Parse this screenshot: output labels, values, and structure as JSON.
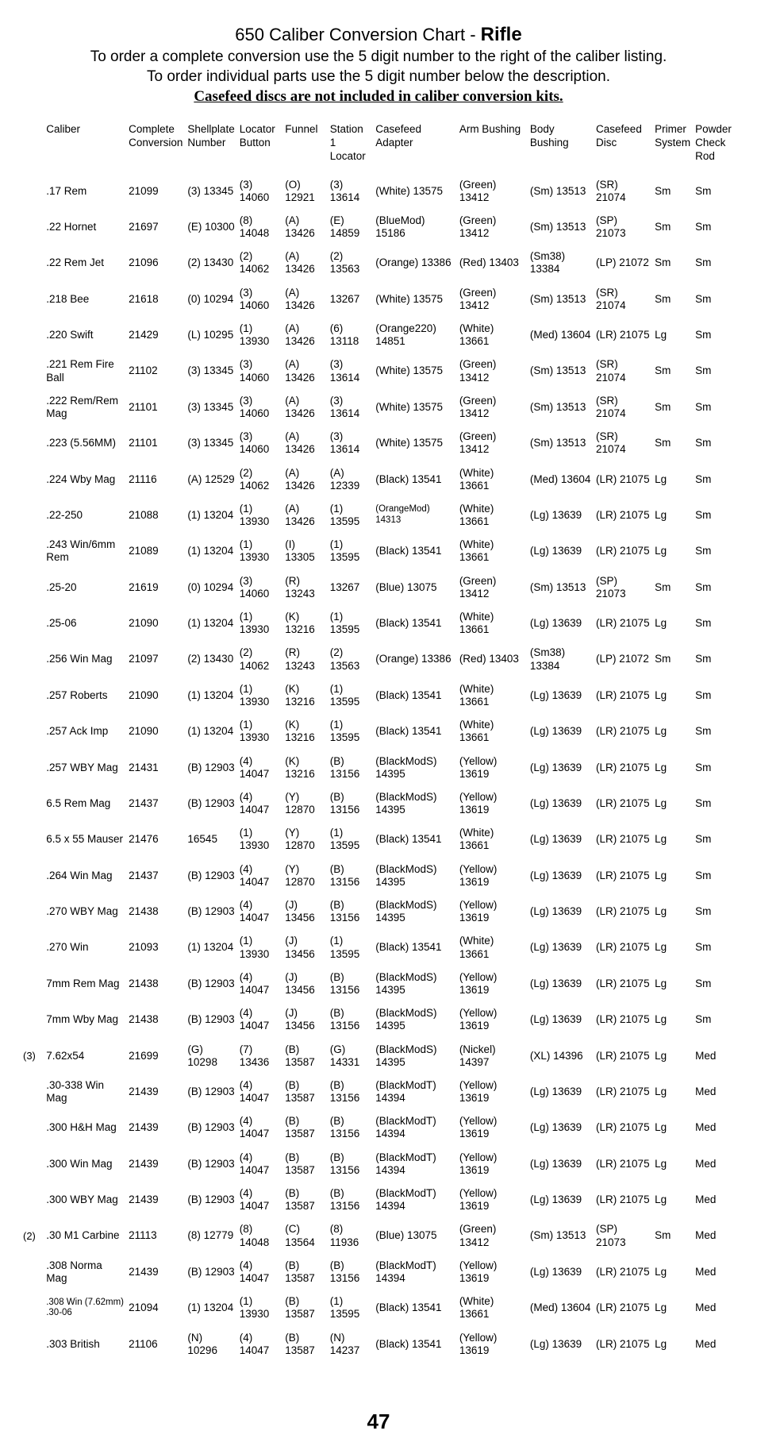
{
  "title": {
    "line1_pre": "650 Caliber Conversion Chart - ",
    "line1_bold": "Rifle",
    "line2": "To order a complete conversion use the 5 digit number to the right of the caliber listing.",
    "line3": "To order individual parts use the 5 digit number below the description.",
    "line4": "Casefeed discs are not included in caliber conversion kits."
  },
  "headers": {
    "caliber": "Caliber",
    "complete": "Complete Conversion",
    "shellplate": "Shellplate Number",
    "locator": "Locator Button",
    "funnel": "Funnel",
    "station1": "Station 1 Locator",
    "adapter": "Casefeed Adapter",
    "arm": "Arm Bushing",
    "body": "Body Bushing",
    "disc": "Casefeed Disc",
    "primer": "Primer System",
    "powder": "Powder Check Rod"
  },
  "rows": [
    {
      "note": "",
      "caliber": ".17 Rem",
      "complete": "21099",
      "shellplate": "(3) 13345",
      "locator": "(3) 14060",
      "funnel": "(O) 12921",
      "station1": "(3) 13614",
      "adapter": "(White) 13575",
      "arm": "(Green) 13412",
      "body": "(Sm) 13513",
      "disc": "(SR) 21074",
      "primer": "Sm",
      "powder": "Sm"
    },
    {
      "note": "",
      "caliber": ".22 Hornet",
      "complete": "21697",
      "shellplate": "(E) 10300",
      "locator": "(8) 14048",
      "funnel": "(A) 13426",
      "station1": "(E) 14859",
      "adapter": "(BlueMod) 15186",
      "arm": "(Green) 13412",
      "body": "(Sm) 13513",
      "disc": "(SP) 21073",
      "primer": "Sm",
      "powder": "Sm"
    },
    {
      "note": "",
      "caliber": ".22 Rem Jet",
      "complete": "21096",
      "shellplate": "(2) 13430",
      "locator": "(2) 14062",
      "funnel": "(A) 13426",
      "station1": "(2) 13563",
      "adapter": "(Orange) 13386",
      "arm": "(Red) 13403",
      "body": "(Sm38) 13384",
      "disc": "(LP) 21072",
      "primer": "Sm",
      "powder": "Sm"
    },
    {
      "note": "",
      "caliber": ".218 Bee",
      "complete": "21618",
      "shellplate": "(0) 10294",
      "locator": "(3) 14060",
      "funnel": "(A) 13426",
      "station1": "13267",
      "adapter": "(White) 13575",
      "arm": "(Green) 13412",
      "body": "(Sm) 13513",
      "disc": "(SR) 21074",
      "primer": "Sm",
      "powder": "Sm"
    },
    {
      "note": "",
      "caliber": ".220 Swift",
      "complete": "21429",
      "shellplate": "(L) 10295",
      "locator": "(1) 13930",
      "funnel": "(A) 13426",
      "station1": "(6) 13118",
      "adapter": "(Orange220) 14851",
      "arm": "(White) 13661",
      "body": "(Med) 13604",
      "disc": "(LR) 21075",
      "primer": "Lg",
      "powder": "Sm"
    },
    {
      "note": "",
      "caliber": ".221 Rem Fire Ball",
      "complete": "21102",
      "shellplate": "(3) 13345",
      "locator": "(3) 14060",
      "funnel": "(A) 13426",
      "station1": "(3) 13614",
      "adapter": "(White) 13575",
      "arm": "(Green) 13412",
      "body": "(Sm) 13513",
      "disc": "(SR) 21074",
      "primer": "Sm",
      "powder": "Sm"
    },
    {
      "note": "",
      "caliber": ".222 Rem/Rem Mag",
      "complete": "21101",
      "shellplate": "(3) 13345",
      "locator": "(3) 14060",
      "funnel": "(A) 13426",
      "station1": "(3) 13614",
      "adapter": "(White) 13575",
      "arm": "(Green) 13412",
      "body": "(Sm) 13513",
      "disc": "(SR) 21074",
      "primer": "Sm",
      "powder": "Sm"
    },
    {
      "note": "",
      "caliber": ".223 (5.56MM)",
      "complete": "21101",
      "shellplate": "(3) 13345",
      "locator": "(3) 14060",
      "funnel": "(A) 13426",
      "station1": "(3) 13614",
      "adapter": "(White) 13575",
      "arm": "(Green) 13412",
      "body": "(Sm) 13513",
      "disc": "(SR) 21074",
      "primer": "Sm",
      "powder": "Sm"
    },
    {
      "note": "",
      "caliber": ".224 Wby Mag",
      "complete": "21116",
      "shellplate": "(A) 12529",
      "locator": "(2) 14062",
      "funnel": "(A) 13426",
      "station1": "(A) 12339",
      "adapter": "(Black) 13541",
      "arm": "(White) 13661",
      "body": "(Med) 13604",
      "disc": "(LR) 21075",
      "primer": "Lg",
      "powder": "Sm"
    },
    {
      "note": "",
      "caliber": ".22-250",
      "complete": "21088",
      "shellplate": "(1) 13204",
      "locator": "(1) 13930",
      "funnel": "(A) 13426",
      "station1": "(1) 13595",
      "adapter": "(OrangeMod) 14313",
      "adapter_small": true,
      "arm": "(White) 13661",
      "body": "(Lg) 13639",
      "disc": "(LR) 21075",
      "primer": "Lg",
      "powder": "Sm"
    },
    {
      "note": "",
      "caliber": ".243 Win/6mm Rem",
      "complete": "21089",
      "shellplate": "(1) 13204",
      "locator": "(1) 13930",
      "funnel": "(I) 13305",
      "station1": "(1) 13595",
      "adapter": "(Black) 13541",
      "arm": "(White) 13661",
      "body": "(Lg) 13639",
      "disc": "(LR) 21075",
      "primer": "Lg",
      "powder": "Sm"
    },
    {
      "note": "",
      "caliber": ".25-20",
      "complete": "21619",
      "shellplate": "(0) 10294",
      "locator": "(3) 14060",
      "funnel": "(R) 13243",
      "station1": "13267",
      "adapter": "(Blue) 13075",
      "arm": "(Green) 13412",
      "body": "(Sm) 13513",
      "disc": "(SP) 21073",
      "primer": "Sm",
      "powder": "Sm"
    },
    {
      "note": "",
      "caliber": ".25-06",
      "complete": "21090",
      "shellplate": "(1) 13204",
      "locator": "(1) 13930",
      "funnel": "(K) 13216",
      "station1": "(1) 13595",
      "adapter": "(Black) 13541",
      "arm": "(White) 13661",
      "body": "(Lg) 13639",
      "disc": "(LR) 21075",
      "primer": "Lg",
      "powder": "Sm"
    },
    {
      "note": "",
      "caliber": ".256 Win Mag",
      "complete": "21097",
      "shellplate": "(2) 13430",
      "locator": "(2) 14062",
      "funnel": "(R) 13243",
      "station1": "(2) 13563",
      "adapter": "(Orange) 13386",
      "arm": "(Red) 13403",
      "body": "(Sm38) 13384",
      "disc": "(LP) 21072",
      "primer": "Sm",
      "powder": "Sm"
    },
    {
      "note": "",
      "caliber": ".257 Roberts",
      "complete": "21090",
      "shellplate": "(1) 13204",
      "locator": "(1) 13930",
      "funnel": "(K) 13216",
      "station1": "(1) 13595",
      "adapter": "(Black) 13541",
      "arm": "(White) 13661",
      "body": "(Lg) 13639",
      "disc": "(LR) 21075",
      "primer": "Lg",
      "powder": "Sm"
    },
    {
      "note": "",
      "caliber": ".257 Ack Imp",
      "complete": "21090",
      "shellplate": "(1) 13204",
      "locator": "(1) 13930",
      "funnel": "(K) 13216",
      "station1": "(1) 13595",
      "adapter": "(Black) 13541",
      "arm": "(White) 13661",
      "body": "(Lg) 13639",
      "disc": "(LR) 21075",
      "primer": "Lg",
      "powder": "Sm"
    },
    {
      "note": "",
      "caliber": ".257 WBY Mag",
      "complete": "21431",
      "shellplate": "(B) 12903",
      "locator": "(4) 14047",
      "funnel": "(K) 13216",
      "station1": "(B) 13156",
      "adapter": "(BlackModS) 14395",
      "arm": "(Yellow) 13619",
      "body": "(Lg) 13639",
      "disc": "(LR) 21075",
      "primer": "Lg",
      "powder": "Sm"
    },
    {
      "note": "",
      "caliber": "6.5 Rem Mag",
      "complete": "21437",
      "shellplate": "(B) 12903",
      "locator": "(4) 14047",
      "funnel": "(Y) 12870",
      "station1": "(B) 13156",
      "adapter": "(BlackModS) 14395",
      "arm": "(Yellow) 13619",
      "body": "(Lg) 13639",
      "disc": "(LR) 21075",
      "primer": "Lg",
      "powder": "Sm"
    },
    {
      "note": "",
      "caliber": "6.5 x 55 Mauser",
      "complete": "21476",
      "shellplate": "16545",
      "locator": "(1) 13930",
      "funnel": "(Y) 12870",
      "station1": "(1) 13595",
      "adapter": "(Black) 13541",
      "arm": "(White) 13661",
      "body": "(Lg) 13639",
      "disc": "(LR) 21075",
      "primer": "Lg",
      "powder": "Sm"
    },
    {
      "note": "",
      "caliber": ".264 Win Mag",
      "complete": "21437",
      "shellplate": "(B) 12903",
      "locator": "(4) 14047",
      "funnel": "(Y) 12870",
      "station1": "(B) 13156",
      "adapter": "(BlackModS) 14395",
      "arm": "(Yellow) 13619",
      "body": "(Lg) 13639",
      "disc": "(LR) 21075",
      "primer": "Lg",
      "powder": "Sm"
    },
    {
      "note": "",
      "caliber": ".270 WBY Mag",
      "complete": "21438",
      "shellplate": "(B) 12903",
      "locator": "(4) 14047",
      "funnel": "(J) 13456",
      "station1": "(B) 13156",
      "adapter": "(BlackModS) 14395",
      "arm": "(Yellow) 13619",
      "body": "(Lg) 13639",
      "disc": "(LR) 21075",
      "primer": "Lg",
      "powder": "Sm"
    },
    {
      "note": "",
      "caliber": ".270 Win",
      "complete": "21093",
      "shellplate": "(1) 13204",
      "locator": "(1) 13930",
      "funnel": "(J) 13456",
      "station1": "(1) 13595",
      "adapter": "(Black) 13541",
      "arm": "(White) 13661",
      "body": "(Lg) 13639",
      "disc": "(LR) 21075",
      "primer": "Lg",
      "powder": "Sm"
    },
    {
      "note": "",
      "caliber": "7mm Rem Mag",
      "complete": "21438",
      "shellplate": "(B) 12903",
      "locator": "(4) 14047",
      "funnel": "(J) 13456",
      "station1": "(B) 13156",
      "adapter": "(BlackModS) 14395",
      "arm": "(Yellow) 13619",
      "body": "(Lg) 13639",
      "disc": "(LR) 21075",
      "primer": "Lg",
      "powder": "Sm"
    },
    {
      "note": "",
      "caliber": "7mm Wby Mag",
      "complete": "21438",
      "shellplate": "(B) 12903",
      "locator": "(4) 14047",
      "funnel": "(J) 13456",
      "station1": "(B) 13156",
      "adapter": "(BlackModS) 14395",
      "arm": "(Yellow) 13619",
      "body": "(Lg) 13639",
      "disc": "(LR) 21075",
      "primer": "Lg",
      "powder": "Sm"
    },
    {
      "note": "(3)",
      "caliber": "7.62x54",
      "complete": "21699",
      "shellplate": "(G) 10298",
      "locator": "(7) 13436",
      "funnel": "(B) 13587",
      "station1": "(G) 14331",
      "adapter": "(BlackModS) 14395",
      "arm": "(Nickel) 14397",
      "body": "(XL) 14396",
      "disc": "(LR) 21075",
      "primer": "Lg",
      "powder": "Med"
    },
    {
      "note": "",
      "caliber": ".30-338 Win Mag",
      "complete": "21439",
      "shellplate": "(B) 12903",
      "locator": "(4) 14047",
      "funnel": "(B) 13587",
      "station1": "(B) 13156",
      "adapter": "(BlackModT) 14394",
      "arm": "(Yellow) 13619",
      "body": "(Lg) 13639",
      "disc": "(LR) 21075",
      "primer": "Lg",
      "powder": "Med"
    },
    {
      "note": "",
      "caliber": ".300 H&H Mag",
      "complete": "21439",
      "shellplate": "(B) 12903",
      "locator": "(4) 14047",
      "funnel": "(B) 13587",
      "station1": "(B) 13156",
      "adapter": "(BlackModT) 14394",
      "arm": "(Yellow) 13619",
      "body": "(Lg) 13639",
      "disc": "(LR) 21075",
      "primer": "Lg",
      "powder": "Med"
    },
    {
      "note": "",
      "caliber": ".300 Win Mag",
      "complete": "21439",
      "shellplate": "(B) 12903",
      "locator": "(4) 14047",
      "funnel": "(B) 13587",
      "station1": "(B) 13156",
      "adapter": "(BlackModT) 14394",
      "arm": "(Yellow) 13619",
      "body": "(Lg) 13639",
      "disc": "(LR) 21075",
      "primer": "Lg",
      "powder": "Med"
    },
    {
      "note": "",
      "caliber": ".300 WBY Mag",
      "complete": "21439",
      "shellplate": "(B) 12903",
      "locator": "(4) 14047",
      "funnel": "(B) 13587",
      "station1": "(B) 13156",
      "adapter": "(BlackModT) 14394",
      "arm": "(Yellow) 13619",
      "body": "(Lg) 13639",
      "disc": "(LR) 21075",
      "primer": "Lg",
      "powder": "Med"
    },
    {
      "note": "(2)",
      "caliber": ".30 M1 Carbine",
      "complete": "21113",
      "shellplate": "(8) 12779",
      "locator": "(8) 14048",
      "funnel": "(C) 13564",
      "station1": "(8) 11936",
      "adapter": "(Blue) 13075",
      "arm": "(Green) 13412",
      "body": "(Sm) 13513",
      "disc": "(SP) 21073",
      "primer": "Sm",
      "powder": "Med"
    },
    {
      "note": "",
      "caliber": ".308 Norma Mag",
      "complete": "21439",
      "shellplate": "(B) 12903",
      "locator": "(4) 14047",
      "funnel": "(B) 13587",
      "station1": "(B) 13156",
      "adapter": "(BlackModT) 14394",
      "arm": "(Yellow) 13619",
      "body": "(Lg) 13639",
      "disc": "(LR) 21075",
      "primer": "Lg",
      "powder": "Med"
    },
    {
      "note": "",
      "caliber": ".308 Win (7.62mm) .30-06",
      "caliber_small": true,
      "complete": "21094",
      "shellplate": "(1) 13204",
      "locator": "(1) 13930",
      "funnel": "(B) 13587",
      "station1": "(1) 13595",
      "adapter": "(Black) 13541",
      "arm": "(White) 13661",
      "body": "(Med) 13604",
      "disc": "(LR) 21075",
      "primer": "Lg",
      "powder": "Med"
    },
    {
      "note": "",
      "caliber": ".303 British",
      "complete": "21106",
      "shellplate": "(N) 10296",
      "locator": "(4) 14047",
      "funnel": "(B) 13587",
      "station1": "(N) 14237",
      "adapter": "(Black) 13541",
      "arm": "(Yellow) 13619",
      "body": "(Lg) 13639",
      "disc": "(LR) 21075",
      "primer": "Lg",
      "powder": "Med"
    }
  ],
  "page_number": "47"
}
